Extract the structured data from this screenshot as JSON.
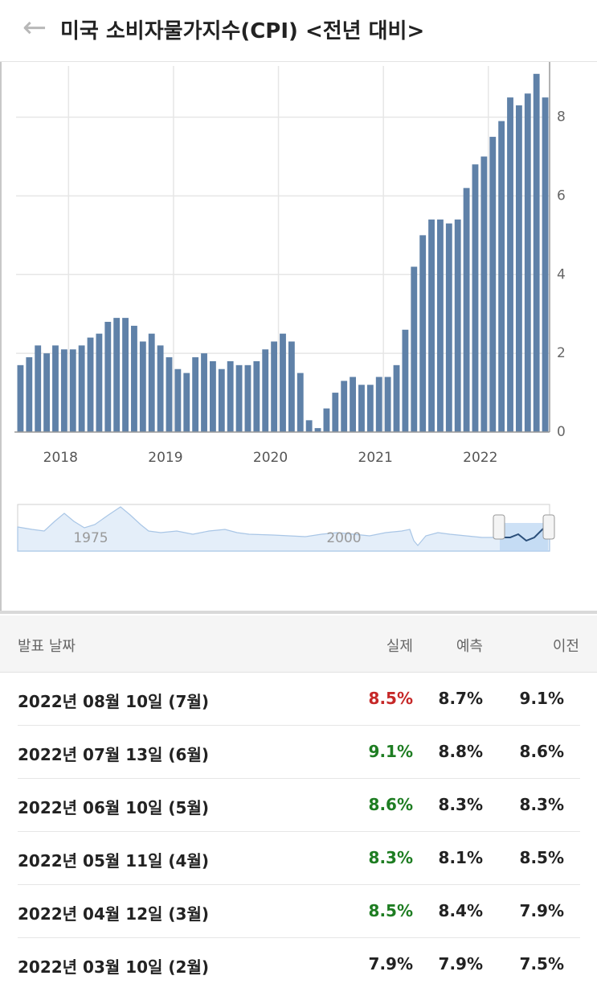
{
  "header": {
    "title": "미국 소비자물가지수(CPI) <전년 대비>"
  },
  "chart_data": {
    "type": "bar",
    "categories": [
      null,
      null,
      null,
      null,
      null,
      null,
      "2018",
      null,
      null,
      null,
      null,
      null,
      null,
      null,
      null,
      null,
      null,
      null,
      "2019",
      null,
      null,
      null,
      null,
      null,
      null,
      null,
      null,
      null,
      null,
      null,
      "2020",
      null,
      null,
      null,
      null,
      null,
      null,
      null,
      null,
      null,
      null,
      null,
      "2021",
      null,
      null,
      null,
      null,
      null,
      null,
      null,
      null,
      null,
      null,
      null,
      "2022",
      null,
      null,
      null,
      null,
      null,
      null
    ],
    "values": [
      1.7,
      1.9,
      2.2,
      2.0,
      2.2,
      2.1,
      2.1,
      2.2,
      2.4,
      2.5,
      2.8,
      2.9,
      2.9,
      2.7,
      2.3,
      2.5,
      2.2,
      1.9,
      1.6,
      1.5,
      1.9,
      2.0,
      1.8,
      1.6,
      1.8,
      1.7,
      1.7,
      1.8,
      2.1,
      2.3,
      2.5,
      2.3,
      1.5,
      0.3,
      0.1,
      0.6,
      1.0,
      1.3,
      1.4,
      1.2,
      1.2,
      1.4,
      1.4,
      1.7,
      2.6,
      4.2,
      5.0,
      5.4,
      5.4,
      5.3,
      5.4,
      6.2,
      6.8,
      7.0,
      7.5,
      7.9,
      8.5,
      8.3,
      8.6,
      9.1,
      8.5
    ],
    "color": "#5f81a8",
    "ylim": [
      0,
      9.3
    ],
    "yticks": [
      0,
      2,
      4,
      6,
      8
    ],
    "grid": true
  },
  "navigator": {
    "labels": [
      "1975",
      "2000"
    ]
  },
  "table": {
    "columns": [
      "발표 날짜",
      "실제",
      "예측",
      "이전"
    ],
    "rows": [
      {
        "date": "2022년 08월 10일 (7월)",
        "actual": "8.5%",
        "forecast": "8.7%",
        "previous": "9.1%",
        "actual_color": "#c62828"
      },
      {
        "date": "2022년 07월 13일 (6월)",
        "actual": "9.1%",
        "forecast": "8.8%",
        "previous": "8.6%",
        "actual_color": "#1e7d22"
      },
      {
        "date": "2022년 06월 10일 (5월)",
        "actual": "8.6%",
        "forecast": "8.3%",
        "previous": "8.3%",
        "actual_color": "#1e7d22"
      },
      {
        "date": "2022년 05월 11일 (4월)",
        "actual": "8.3%",
        "forecast": "8.1%",
        "previous": "8.5%",
        "actual_color": "#1e7d22"
      },
      {
        "date": "2022년 04월 12일 (3월)",
        "actual": "8.5%",
        "forecast": "8.4%",
        "previous": "7.9%",
        "actual_color": "#1e7d22"
      },
      {
        "date": "2022년 03월 10일 (2월)",
        "actual": "7.9%",
        "forecast": "7.9%",
        "previous": "7.5%",
        "actual_color": "#222222"
      }
    ]
  }
}
